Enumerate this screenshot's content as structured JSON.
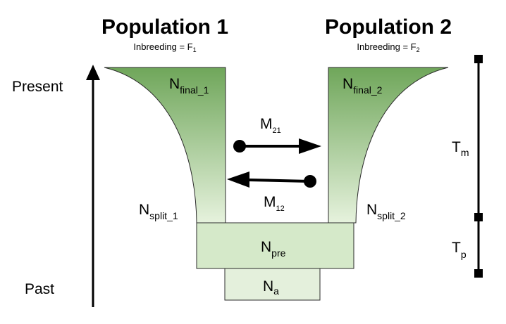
{
  "populations": [
    {
      "title": "Population 1",
      "inbreeding": {
        "prefix": "Inbreeding = F",
        "index": "1"
      },
      "final_size": {
        "symbol": "N",
        "index": "final_1"
      },
      "split_size": {
        "symbol": "N",
        "index": "split_1"
      }
    },
    {
      "title": "Population 2",
      "inbreeding": {
        "prefix": "Inbreeding = F",
        "index": "2"
      },
      "final_size": {
        "symbol": "N",
        "index": "final_2"
      },
      "split_size": {
        "symbol": "N",
        "index": "split_2"
      }
    }
  ],
  "migration": [
    {
      "symbol": "M",
      "index": "21"
    },
    {
      "symbol": "M",
      "index": "12"
    }
  ],
  "ancestral": {
    "pre": {
      "symbol": "N",
      "index": "pre"
    },
    "root": {
      "symbol": "N",
      "index": "a"
    }
  },
  "time_axis": {
    "present": "Present",
    "past": "Past"
  },
  "periods": [
    {
      "symbol": "T",
      "index": "m"
    },
    {
      "symbol": "T",
      "index": "p"
    }
  ],
  "colors": {
    "trumpet_top": "#6fa65a",
    "trumpet_bottom": "#e6f2dd",
    "pre_block": "#d5e9c9",
    "root_block": "#e4f0dc",
    "outline": "#2b2b2b"
  }
}
